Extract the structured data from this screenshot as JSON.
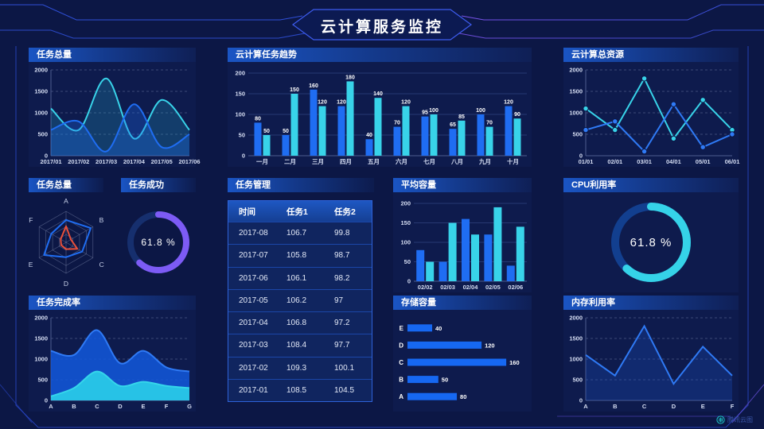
{
  "header": {
    "title": "云计算服务监控"
  },
  "watermark": {
    "label": "腾讯云图",
    "icon": "tencent-cloud-logo"
  },
  "panels": {
    "task_total_line": {
      "title": "任务总量"
    },
    "task_trend_bar": {
      "title": "云计算任务趋势"
    },
    "total_resource_line": {
      "title": "云计算总资源"
    },
    "task_total_radar": {
      "title": "任务总量"
    },
    "task_success_donut": {
      "title": "任务成功",
      "value_label": "61.8 %"
    },
    "task_table": {
      "title": "任务管理",
      "columns": [
        "时间",
        "任务1",
        "任务2"
      ],
      "rows": [
        [
          "2017-08",
          "106.7",
          "99.8"
        ],
        [
          "2017-07",
          "105.8",
          "98.7"
        ],
        [
          "2017-06",
          "106.1",
          "98.2"
        ],
        [
          "2017-05",
          "106.2",
          "97"
        ],
        [
          "2017-04",
          "106.8",
          "97.2"
        ],
        [
          "2017-03",
          "108.4",
          "97.7"
        ],
        [
          "2017-02",
          "109.3",
          "100.1"
        ],
        [
          "2017-01",
          "108.5",
          "104.5"
        ]
      ]
    },
    "avg_capacity_bar": {
      "title": "平均容量"
    },
    "cpu_donut": {
      "title": "CPU利用率",
      "value_label": "61.8 %"
    },
    "task_completion_area": {
      "title": "任务完成率"
    },
    "storage_hbar": {
      "title": "存储容量"
    },
    "memory_line": {
      "title": "内存利用率"
    }
  },
  "colors": {
    "background": "#0c1745",
    "frame": "#2946c8",
    "accent_blue": "#1f6df2",
    "accent_cyan": "#38d3e9",
    "accent_purple": "#7d5bf5",
    "accent_red": "#e8503a"
  },
  "chart_data": [
    {
      "id": "task_total_line",
      "type": "line",
      "smooth": true,
      "area": true,
      "grid": "dashed",
      "x": [
        "2017/01",
        "2017/02",
        "2017/03",
        "2017/04",
        "2017/05",
        "2017/06"
      ],
      "ylim": [
        0,
        2000
      ],
      "yticks": [
        0,
        500,
        1000,
        1500,
        2000
      ],
      "series": [
        {
          "name": "series-cyan",
          "color": "#38d3e9",
          "fill": "#2bb8d8",
          "fillOpacity": 0.22,
          "values": [
            1100,
            600,
            1800,
            400,
            1300,
            600
          ]
        },
        {
          "name": "series-blue",
          "color": "#1f6df2",
          "fill": "#1f6df2",
          "fillOpacity": 0.3,
          "values": [
            600,
            800,
            100,
            1200,
            200,
            500
          ]
        }
      ]
    },
    {
      "id": "task_trend_bar",
      "type": "bar",
      "labels": true,
      "categories": [
        "一月",
        "二月",
        "三月",
        "四月",
        "五月",
        "六月",
        "七月",
        "八月",
        "九月",
        "十月"
      ],
      "ylim": [
        0,
        200
      ],
      "yticks": [
        0,
        50,
        100,
        150,
        200
      ],
      "series": [
        {
          "name": "任务1",
          "color": "#1f6df2",
          "values": [
            80,
            50,
            160,
            120,
            40,
            70,
            95,
            65,
            100,
            120
          ]
        },
        {
          "name": "任务2",
          "color": "#38d3e9",
          "values": [
            50,
            150,
            120,
            180,
            140,
            120,
            100,
            85,
            70,
            90
          ]
        }
      ]
    },
    {
      "id": "total_resource_line",
      "type": "line",
      "markers": true,
      "grid": "dashed",
      "x": [
        "01/01",
        "02/01",
        "03/01",
        "04/01",
        "05/01",
        "06/01"
      ],
      "ylim": [
        0,
        2000
      ],
      "yticks": [
        0,
        500,
        1000,
        1500,
        2000
      ],
      "series": [
        {
          "name": "series-cyan",
          "color": "#38d3e9",
          "values": [
            1100,
            600,
            1800,
            400,
            1300,
            600
          ]
        },
        {
          "name": "series-blue",
          "color": "#2f7af5",
          "values": [
            600,
            800,
            100,
            1200,
            200,
            500
          ]
        }
      ]
    },
    {
      "id": "task_total_radar",
      "type": "radar",
      "max": 100,
      "indicators": [
        "A",
        "B",
        "C",
        "D",
        "E",
        "F"
      ],
      "series": [
        {
          "name": "series-blue",
          "color": "#1f6df2",
          "values": [
            72,
            92,
            60,
            48,
            82,
            55
          ]
        },
        {
          "name": "series-red",
          "color": "#e8503a",
          "values": [
            52,
            18,
            42,
            22,
            18,
            20
          ]
        }
      ]
    },
    {
      "id": "task_success_donut",
      "type": "donut",
      "percent": 61.8,
      "color": "#7d5bf5",
      "track": "#162f6e",
      "radius": 35,
      "thickness": 8
    },
    {
      "id": "avg_capacity_bar",
      "type": "bar",
      "labels": false,
      "categories": [
        "02/02",
        "02/03",
        "02/04",
        "02/05",
        "02/06"
      ],
      "ylim": [
        0,
        200
      ],
      "yticks": [
        0,
        50,
        100,
        150,
        200
      ],
      "series": [
        {
          "name": "series-blue",
          "color": "#1f6df2",
          "values": [
            80,
            50,
            160,
            120,
            40
          ]
        },
        {
          "name": "series-cyan",
          "color": "#38d3e9",
          "values": [
            50,
            150,
            120,
            190,
            140
          ]
        }
      ]
    },
    {
      "id": "cpu_donut",
      "type": "donut",
      "percent": 61.8,
      "color": "#35d3e8",
      "track": "#123f8f",
      "radius": 45,
      "thickness": 10
    },
    {
      "id": "task_completion_area",
      "type": "line",
      "smooth": true,
      "area": true,
      "grid": "dashed",
      "x": [
        "A",
        "B",
        "C",
        "D",
        "E",
        "F",
        "G"
      ],
      "ylim": [
        0,
        2000
      ],
      "yticks": [
        0,
        500,
        1000,
        1500,
        2000
      ],
      "series": [
        {
          "name": "series-blue",
          "color": "#2f7af5",
          "fill": "#1257d8",
          "fillOpacity": 0.88,
          "values": [
            1200,
            1100,
            1700,
            900,
            1200,
            800,
            700
          ]
        },
        {
          "name": "series-cyan",
          "color": "#35d6ea",
          "fill": "#29c8e8",
          "fillOpacity": 0.95,
          "values": [
            100,
            300,
            700,
            350,
            450,
            350,
            300
          ]
        }
      ]
    },
    {
      "id": "storage_hbar",
      "type": "hbar",
      "color": "#1668f2",
      "xmax": 165,
      "categories": [
        "E",
        "D",
        "C",
        "B",
        "A"
      ],
      "values": [
        40,
        120,
        160,
        50,
        80
      ]
    },
    {
      "id": "memory_line",
      "type": "line",
      "grid": "dashed",
      "area": true,
      "x": [
        "A",
        "B",
        "C",
        "D",
        "E",
        "F"
      ],
      "ylim": [
        0,
        2000
      ],
      "yticks": [
        0,
        500,
        1000,
        1500,
        2000
      ],
      "series": [
        {
          "name": "series-blue",
          "color": "#2f7af5",
          "fill": "#1a4fc0",
          "fillOpacity": 0.3,
          "values": [
            1100,
            600,
            1800,
            400,
            1300,
            600
          ]
        }
      ]
    }
  ]
}
